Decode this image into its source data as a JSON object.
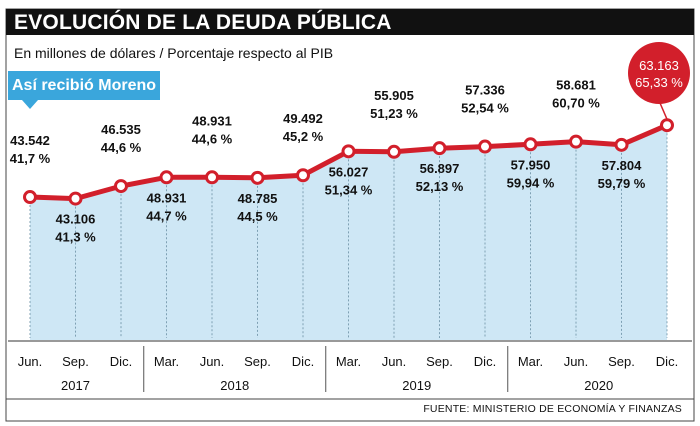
{
  "title": "EVOLUCIÓN DE LA DEUDA PÚBLICA",
  "subtitle": "En millones de dólares / Porcentaje respecto al PIB",
  "badge": "Así recibió Moreno",
  "source": "FUENTE: MINISTERIO DE ECONOMÍA Y FINANZAS",
  "colors": {
    "line": "#d21f2b",
    "area": "#c6e3f3",
    "badge": "#3aa6dc",
    "title_bg": "#111111",
    "highlight": "#d21f2b"
  },
  "chart_data": {
    "type": "line",
    "title": "EVOLUCIÓN DE LA DEUDA PÚBLICA",
    "xlabel": "",
    "ylabel": "En millones de dólares / Porcentaje respecto al PIB",
    "categories": [
      "Jun.",
      "Sep.",
      "Dic.",
      "Mar.",
      "Jun.",
      "Sep.",
      "Dic.",
      "Mar.",
      "Jun.",
      "Sep.",
      "Dic.",
      "Mar.",
      "Jun.",
      "Sep.",
      "Dic."
    ],
    "years": [
      {
        "label": "2017",
        "start": 0,
        "end": 2
      },
      {
        "label": "2018",
        "start": 3,
        "end": 6
      },
      {
        "label": "2019",
        "start": 7,
        "end": 10
      },
      {
        "label": "2020",
        "start": 11,
        "end": 14
      }
    ],
    "series": [
      {
        "name": "Deuda pública (millones USD)",
        "values": [
          43542,
          43106,
          46535,
          48931,
          48931,
          48785,
          49492,
          56027,
          55905,
          56897,
          57336,
          57950,
          58681,
          57804,
          63163
        ]
      },
      {
        "name": "Porcentaje respecto al PIB",
        "values": [
          41.7,
          41.3,
          44.6,
          44.7,
          44.6,
          44.5,
          45.2,
          51.34,
          51.23,
          52.13,
          52.54,
          59.94,
          60.7,
          59.79,
          65.33
        ]
      }
    ],
    "labels": [
      {
        "amount": "43.542",
        "pct": "41,7 %",
        "pos": "above"
      },
      {
        "amount": "43.106",
        "pct": "41,3 %",
        "pos": "below"
      },
      {
        "amount": "46.535",
        "pct": "44,6 %",
        "pos": "above"
      },
      {
        "amount": "48.931",
        "pct": "44,7 %",
        "pos": "below"
      },
      {
        "amount": "48.931",
        "pct": "44,6 %",
        "pos": "above"
      },
      {
        "amount": "48.785",
        "pct": "44,5 %",
        "pos": "below"
      },
      {
        "amount": "49.492",
        "pct": "45,2 %",
        "pos": "above"
      },
      {
        "amount": "56.027",
        "pct": "51,34 %",
        "pos": "below"
      },
      {
        "amount": "55.905",
        "pct": "51,23 %",
        "pos": "above"
      },
      {
        "amount": "56.897",
        "pct": "52,13 %",
        "pos": "below"
      },
      {
        "amount": "57.336",
        "pct": "52,54 %",
        "pos": "above"
      },
      {
        "amount": "57.950",
        "pct": "59,94 %",
        "pos": "below"
      },
      {
        "amount": "58.681",
        "pct": "60,70 %",
        "pos": "above"
      },
      {
        "amount": "57.804",
        "pct": "59,79 %",
        "pos": "below"
      },
      {
        "amount": "63.163",
        "pct": "65,33 %",
        "pos": "highlight"
      }
    ]
  }
}
